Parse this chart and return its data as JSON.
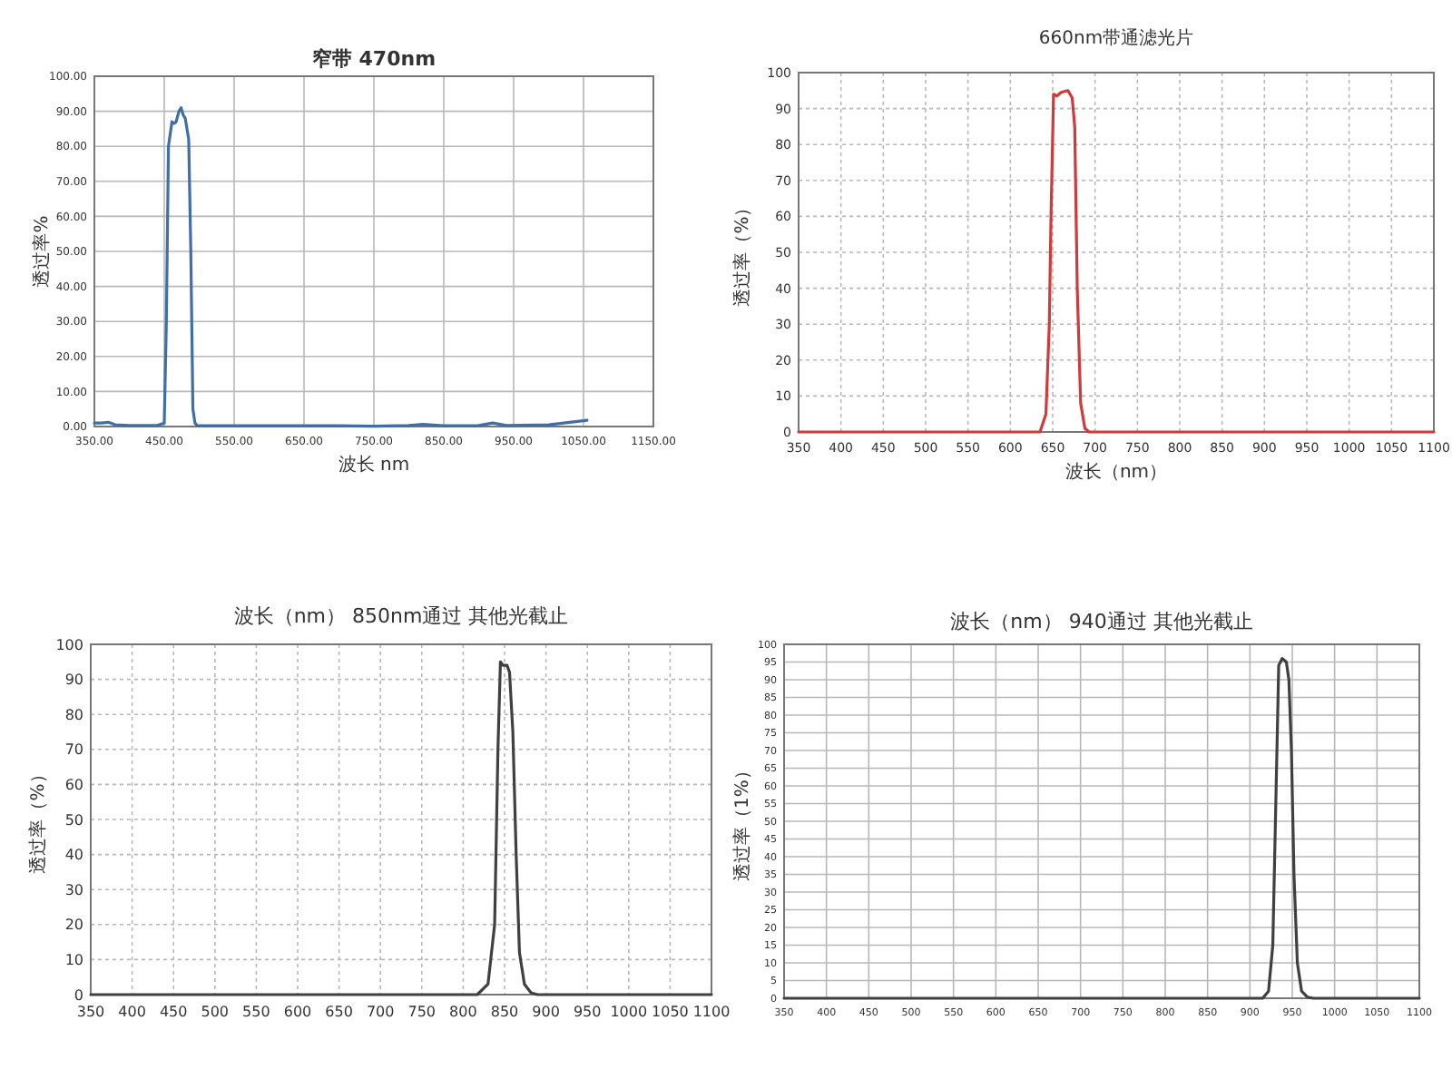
{
  "chart_data": [
    {
      "type": "line",
      "title": "窄带 470nm",
      "xlabel": "波长 nm",
      "ylabel": "透过率%",
      "grid": true,
      "marker": "none",
      "line_style": "solid",
      "xlim": [
        350,
        1150
      ],
      "xticks": [
        {
          "value": 350,
          "label": "350.00"
        },
        {
          "value": 450,
          "label": "450.00"
        },
        {
          "value": 550,
          "label": "550.00"
        },
        {
          "value": 650,
          "label": "650.00"
        },
        {
          "value": 750,
          "label": "750.00"
        },
        {
          "value": 850,
          "label": "850.00"
        },
        {
          "value": 950,
          "label": "950.00"
        },
        {
          "value": 1050,
          "label": "1050.00"
        },
        {
          "value": 1150,
          "label": "1150.00"
        }
      ],
      "ylim": [
        0,
        100
      ],
      "yticks": [
        {
          "value": 0,
          "label": "0.00"
        },
        {
          "value": 10,
          "label": "10.00"
        },
        {
          "value": 20,
          "label": "20.00"
        },
        {
          "value": 30,
          "label": "30.00"
        },
        {
          "value": 40,
          "label": "40.00"
        },
        {
          "value": 50,
          "label": "50.00"
        },
        {
          "value": 60,
          "label": "60.00"
        },
        {
          "value": 70,
          "label": "70.00"
        },
        {
          "value": 80,
          "label": "80.00"
        },
        {
          "value": 90,
          "label": "90.00"
        },
        {
          "value": 100,
          "label": "100.00"
        }
      ],
      "series": [
        {
          "color": "#3f6fa8",
          "x": [
            350,
            360,
            370,
            380,
            400,
            440,
            450,
            453,
            456,
            461,
            464,
            467,
            471,
            474,
            477,
            480,
            485,
            488,
            491,
            494,
            497,
            500,
            600,
            700,
            750,
            800,
            820,
            850,
            900,
            920,
            940,
            1000,
            1055
          ],
          "values": [
            1,
            1,
            1.2,
            0.5,
            0.3,
            0.3,
            1,
            30,
            80,
            87,
            86.5,
            87,
            90,
            91,
            89,
            88,
            82,
            50,
            5,
            1,
            0.3,
            0.2,
            0.2,
            0.2,
            0.1,
            0.3,
            0.6,
            0.2,
            0.3,
            1,
            0.3,
            0.5,
            1.8
          ]
        }
      ]
    },
    {
      "type": "line",
      "title": "660nm带通滤光片",
      "xlabel": "波长（nm）",
      "ylabel": "透过率（%）",
      "grid": true,
      "marker": "none",
      "line_style": "solid",
      "xlim": [
        350,
        1100
      ],
      "xticks": [
        350,
        400,
        450,
        500,
        550,
        600,
        650,
        700,
        750,
        800,
        850,
        900,
        950,
        1000,
        1050,
        1100
      ],
      "ylim": [
        0,
        100
      ],
      "yticks": [
        0,
        10,
        20,
        30,
        40,
        50,
        60,
        70,
        80,
        90,
        100
      ],
      "series": [
        {
          "color": "#d03a3a",
          "x": [
            350,
            635,
            642,
            646,
            648,
            651,
            655,
            660,
            668,
            673,
            676,
            679,
            683,
            688,
            693,
            1100
          ],
          "values": [
            0,
            0,
            5,
            30,
            60,
            94,
            93.5,
            94.5,
            95,
            93,
            85,
            40,
            8,
            1,
            0,
            0
          ]
        }
      ]
    },
    {
      "type": "line",
      "title": "波长（nm）       850nm通过  其他光截止",
      "ylabel": "透过率（%）",
      "grid": true,
      "marker": "none",
      "line_style": "solid",
      "xlim": [
        350,
        1100
      ],
      "xticks": [
        350,
        400,
        450,
        500,
        550,
        600,
        650,
        700,
        750,
        800,
        850,
        900,
        950,
        1000,
        1050,
        1100
      ],
      "ylim": [
        0,
        100
      ],
      "yticks": [
        0,
        10,
        20,
        30,
        40,
        50,
        60,
        70,
        80,
        90,
        100
      ],
      "series": [
        {
          "color": "#404040",
          "x": [
            350,
            817,
            830,
            838,
            842,
            845,
            848,
            853,
            856,
            860,
            864,
            868,
            874,
            882,
            890,
            1100
          ],
          "values": [
            0,
            0,
            3,
            20,
            70,
            95,
            94,
            94,
            92,
            75,
            40,
            12,
            3,
            0.5,
            0,
            0
          ]
        }
      ]
    },
    {
      "type": "line",
      "title": "波长（nm） 940通过 其他光截止",
      "ylabel": "透过率（1%）",
      "grid": true,
      "marker": "none",
      "line_style": "solid",
      "xlim": [
        350,
        1100
      ],
      "xticks": [
        350,
        400,
        450,
        500,
        550,
        600,
        650,
        700,
        750,
        800,
        850,
        900,
        950,
        1000,
        1050,
        1100
      ],
      "ylim": [
        0,
        100
      ],
      "yticks": [
        0,
        5,
        10,
        15,
        20,
        25,
        30,
        35,
        40,
        45,
        50,
        55,
        60,
        65,
        70,
        75,
        80,
        85,
        90,
        95,
        100
      ],
      "series": [
        {
          "color": "#404040",
          "x": [
            350,
            915,
            922,
            927,
            931,
            934,
            938,
            943,
            946,
            949,
            952,
            956,
            961,
            968,
            975,
            1100
          ],
          "values": [
            0,
            0,
            2,
            15,
            60,
            94,
            96,
            95,
            90,
            70,
            35,
            10,
            2,
            0.3,
            0,
            0
          ]
        }
      ]
    }
  ]
}
